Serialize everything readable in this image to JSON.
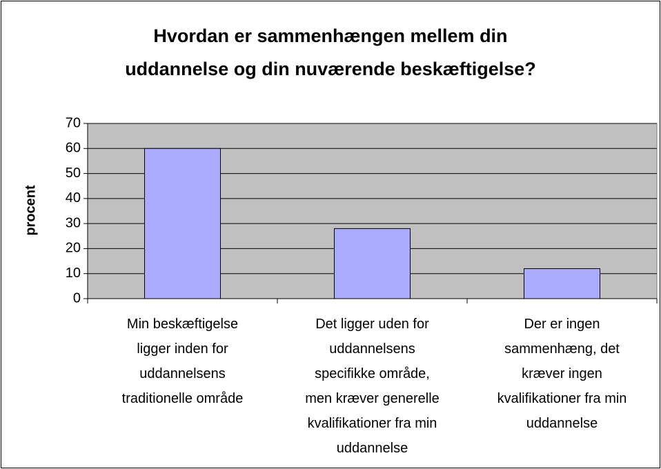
{
  "chart_data": {
    "type": "bar",
    "title": "Hvordan er sammenhængen mellem din\nuddannelse og din nuværende beskæftigelse?",
    "ylabel": "procent",
    "categories": [
      "Min beskæftigelse\nligger inden for\nuddannelsens\ntraditionelle område",
      "Det ligger uden for\nuddannelsens\nspecifikke område,\nmen kræver generelle\nkvalifikationer fra min\nuddannelse",
      "Der er ingen\nsammenhæng, det\nkræver ingen\nkvalifikationer fra min\nuddannelse"
    ],
    "values": [
      60,
      28,
      12
    ],
    "color": "#aaaaff",
    "ylim": [
      0,
      70
    ],
    "yticks": [
      0,
      10,
      20,
      30,
      40,
      50,
      60,
      70
    ],
    "grid": true
  }
}
